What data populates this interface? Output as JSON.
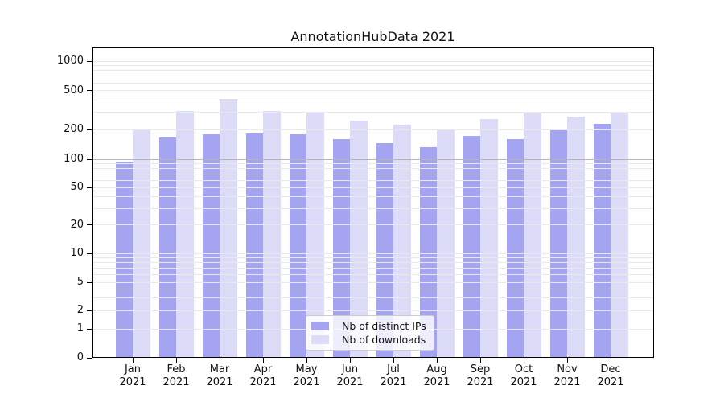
{
  "chart_data": {
    "type": "bar",
    "title": "AnnotationHubData 2021",
    "categories": [
      "Jan",
      "Feb",
      "Mar",
      "Apr",
      "May",
      "Jun",
      "Jul",
      "Aug",
      "Sep",
      "Oct",
      "Nov",
      "Dec"
    ],
    "category_year": "2021",
    "series": [
      {
        "name": "Nb of distinct IPs",
        "color": "#a4a4f0",
        "values": [
          94,
          166,
          180,
          183,
          179,
          160,
          146,
          133,
          173,
          160,
          197,
          230
        ]
      },
      {
        "name": "Nb of downloads",
        "color": "#dcdcf8",
        "values": [
          197,
          310,
          412,
          310,
          305,
          247,
          225,
          197,
          259,
          293,
          272,
          305
        ]
      }
    ],
    "y_axis": {
      "scale": "symlog",
      "major_ticks": [
        0,
        1,
        2,
        5,
        10,
        20,
        50,
        100,
        200,
        500,
        1000
      ],
      "minor_ticks": [
        3,
        4,
        6,
        7,
        8,
        9,
        30,
        40,
        60,
        70,
        80,
        90,
        300,
        400,
        600,
        700,
        800,
        900
      ],
      "range": [
        0,
        1000
      ]
    },
    "xlabel": "",
    "ylabel": "",
    "grid": "on",
    "legend": {
      "position": "lower center",
      "entries": [
        "Nb of distinct IPs",
        "Nb of downloads"
      ]
    },
    "colors": {
      "background": "#ffffff",
      "gridline": "#e9e9e9",
      "gridline_emphasis": "#b5b5b5",
      "axis": "#000000",
      "text": "#111111"
    }
  }
}
